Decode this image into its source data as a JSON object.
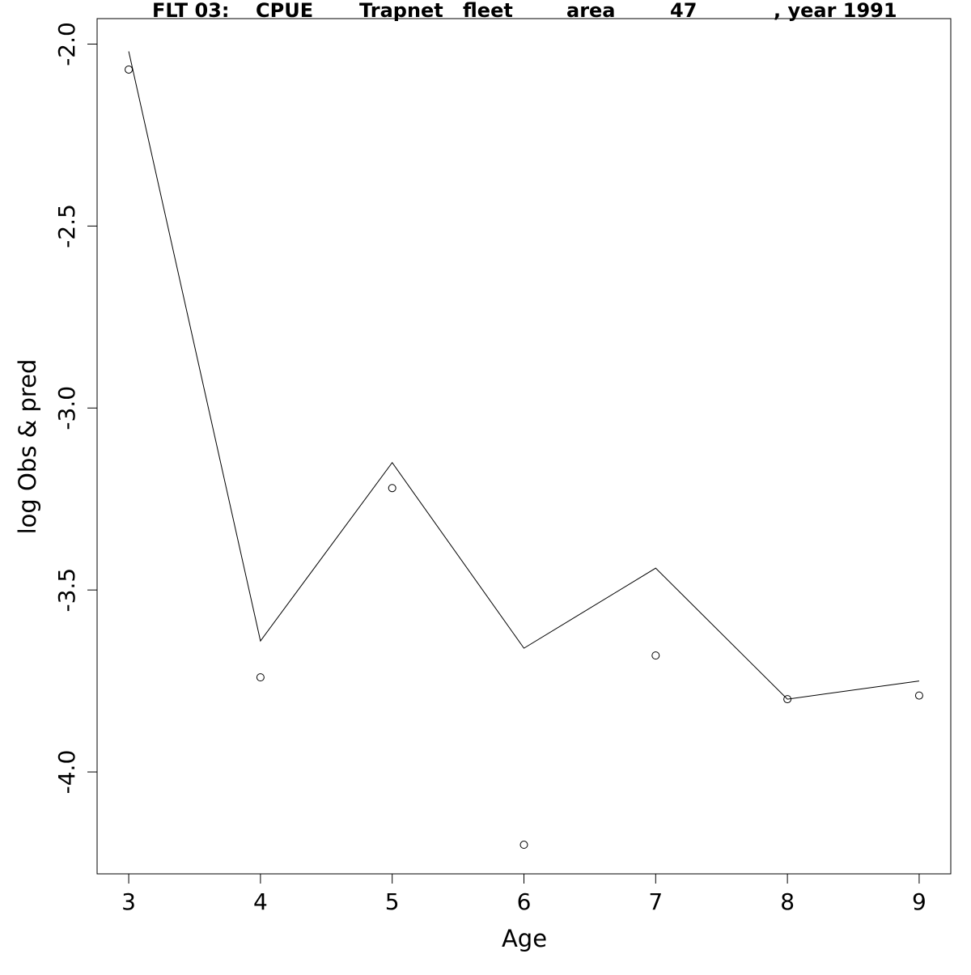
{
  "chart_data": {
    "type": "line",
    "title_parts": [
      "FLT 03:",
      "CPUE",
      "Trapnet",
      "fleet",
      "area",
      "47",
      ", year 1991"
    ],
    "xlabel": "Age",
    "ylabel": "log Obs & pred",
    "x": [
      3,
      4,
      5,
      6,
      7,
      8,
      9
    ],
    "xticks": [
      "3",
      "4",
      "5",
      "6",
      "7",
      "8",
      "9"
    ],
    "yticks": [
      "-2.0",
      "-2.5",
      "-3.0",
      "-3.5",
      "-4.0"
    ],
    "xlim": [
      2.76,
      9.24
    ],
    "ylim": [
      -4.28,
      -1.93
    ],
    "series": [
      {
        "style": "line",
        "values": [
          -2.02,
          -3.64,
          -3.15,
          -3.66,
          -3.44,
          -3.8,
          -3.75
        ]
      },
      {
        "style": "points",
        "marker": "open-circle",
        "values": [
          -2.07,
          -3.74,
          -3.22,
          -4.2,
          -3.68,
          -3.8,
          -3.79
        ]
      }
    ],
    "grid": false,
    "legend": "none",
    "colors": {
      "line": "#000000",
      "points": "#000000",
      "frame": "#000000",
      "background": "#ffffff"
    }
  }
}
